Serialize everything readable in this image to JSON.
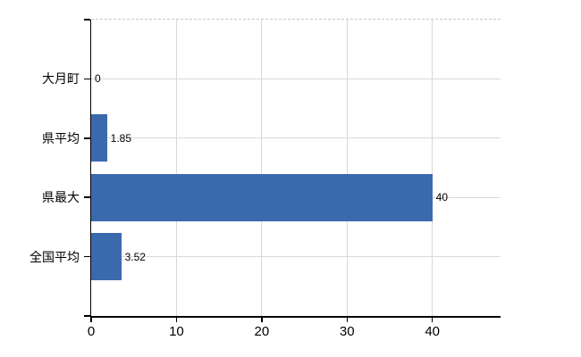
{
  "chart_data": {
    "type": "bar",
    "orientation": "horizontal",
    "title": "",
    "categories": [
      "大月町",
      "県平均",
      "県最大",
      "全国平均"
    ],
    "values": [
      0,
      1.85,
      40,
      3.52
    ],
    "value_labels": [
      "0",
      "1.85",
      "40",
      "3.52"
    ],
    "x_ticks": [
      0,
      10,
      20,
      30,
      40
    ],
    "x_tick_labels": [
      "0",
      "10",
      "20",
      "30",
      "40"
    ],
    "xlim": [
      0,
      48
    ],
    "grid": true,
    "legend": false,
    "colors": {
      "bar": "#3B69AE",
      "grid": "#D9D9D9",
      "axis": "#000000",
      "border_dashed": "#C9C9C9",
      "background": "#FFFFFF",
      "text": "#000000"
    }
  }
}
